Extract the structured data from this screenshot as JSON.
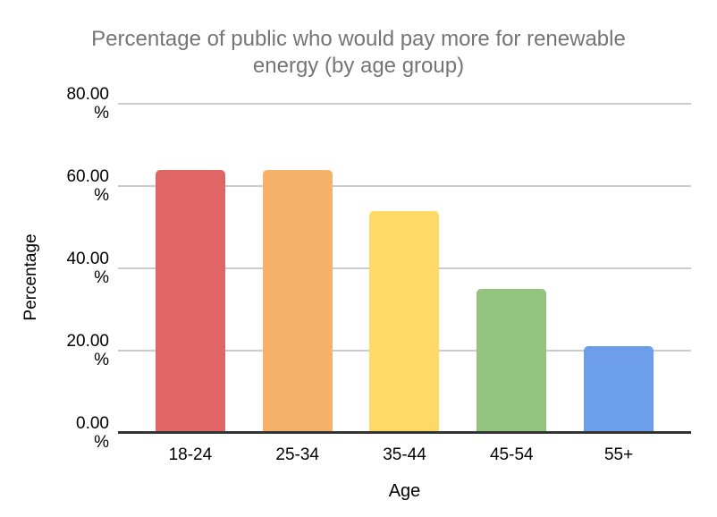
{
  "chart_data": {
    "type": "bar",
    "title": "Percentage of public who would pay more for renewable energy (by age group)",
    "title_line1": "Percentage of public who would pay more for renewable",
    "title_line2": "energy (by age group)",
    "categories": [
      "18-24",
      "25-34",
      "35-44",
      "45-54",
      "55+"
    ],
    "values": [
      64,
      64,
      54,
      35,
      21
    ],
    "bar_colors": [
      "#E06666",
      "#F6B26B",
      "#FFD966",
      "#93C47D",
      "#6D9EEB"
    ],
    "xlabel": "Age",
    "ylabel": "Percentage",
    "ylim": [
      0,
      80
    ],
    "y_tick_values": [
      "80.00",
      "60.00",
      "40.00",
      "20.00",
      "0.00"
    ],
    "y_tick_numeric": [
      80,
      60,
      40,
      20,
      0
    ],
    "y_tick_unit": "%",
    "grid": true,
    "legend": "none",
    "colors": {
      "title_text": "#757575",
      "axis_text": "#000000",
      "gridline": "#cccccc",
      "axis_line": "#333333",
      "background": "#ffffff"
    }
  }
}
